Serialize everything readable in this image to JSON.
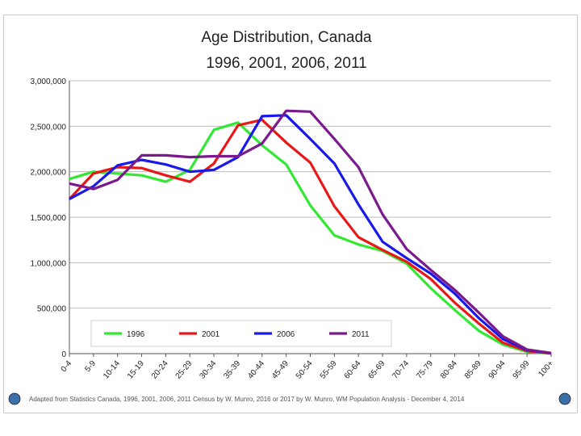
{
  "chart_data": {
    "type": "line",
    "title": [
      "Age Distribution, Canada",
      "1996, 2001, 2006, 2011"
    ],
    "categories": [
      "0-4",
      "5-9",
      "10-14",
      "15-19",
      "20-24",
      "25-29",
      "30-34",
      "35-39",
      "40-44",
      "45-49",
      "50-54",
      "55-59",
      "60-64",
      "65-69",
      "70-74",
      "75-79",
      "80-84",
      "85-89",
      "90-94",
      "95-99",
      "100+"
    ],
    "y_ticks": [
      "0",
      "500,000",
      "1,000,000",
      "1,500,000",
      "2,000,000",
      "2,500,000",
      "3,000,000"
    ],
    "ylim": [
      0,
      3000000
    ],
    "grid": true,
    "legend_position": "bottom-inside",
    "series": [
      {
        "name": "1996",
        "color": "#33e833",
        "values": [
          1920000,
          2000000,
          1980000,
          1960000,
          1890000,
          2020000,
          2460000,
          2540000,
          2290000,
          2080000,
          1630000,
          1300000,
          1200000,
          1130000,
          990000,
          720000,
          480000,
          250000,
          100000,
          20000,
          2000
        ]
      },
      {
        "name": "2001",
        "color": "#e81818",
        "values": [
          1700000,
          1980000,
          2050000,
          2040000,
          1960000,
          1890000,
          2090000,
          2510000,
          2570000,
          2320000,
          2100000,
          1620000,
          1280000,
          1140000,
          1010000,
          820000,
          560000,
          330000,
          120000,
          30000,
          3000
        ]
      },
      {
        "name": "2006",
        "color": "#1a1ae8",
        "values": [
          1700000,
          1840000,
          2070000,
          2130000,
          2080000,
          2000000,
          2020000,
          2160000,
          2610000,
          2620000,
          2360000,
          2090000,
          1640000,
          1230000,
          1050000,
          880000,
          660000,
          390000,
          160000,
          40000,
          5000
        ]
      },
      {
        "name": "2011",
        "color": "#7a1a8c",
        "values": [
          1870000,
          1810000,
          1910000,
          2180000,
          2180000,
          2160000,
          2170000,
          2170000,
          2310000,
          2670000,
          2660000,
          2360000,
          2050000,
          1530000,
          1150000,
          920000,
          700000,
          450000,
          190000,
          45000,
          7000
        ]
      }
    ]
  },
  "footer": {
    "note": "Adapted from Statistics Canada, 1996, 2001, 2006, 2011 Census by W. Munro, 2016 or 2017 by W. Munro, WM Population Analysis - December 4, 2014"
  }
}
